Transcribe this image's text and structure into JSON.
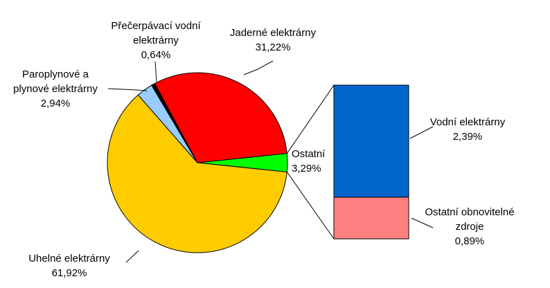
{
  "chart_data": {
    "type": "pie-of-bar",
    "pie": {
      "categories": [
        "Ostatní",
        "Uhelné elektrárny",
        "Paroplynové a plynové elektrárny",
        "Přečerpávací vodní elektrárny",
        "Jaderné elektrárny"
      ],
      "values": [
        3.29,
        61.92,
        2.94,
        0.64,
        31.22
      ],
      "value_labels": [
        "3,29%",
        "61,92%",
        "2,94%",
        "0,64%",
        "31,22%"
      ],
      "colors": [
        "#00ff00",
        "#ffcc00",
        "#99ccff",
        "#000000",
        "#ff0000"
      ]
    },
    "bar": {
      "categories": [
        "Vodní elektrárny",
        "Ostatní obnovitelné zdroje"
      ],
      "values": [
        2.39,
        0.89
      ],
      "value_labels": [
        "2,39%",
        "0,89%"
      ],
      "colors": [
        "#0066cc",
        "#ff8080"
      ]
    }
  }
}
